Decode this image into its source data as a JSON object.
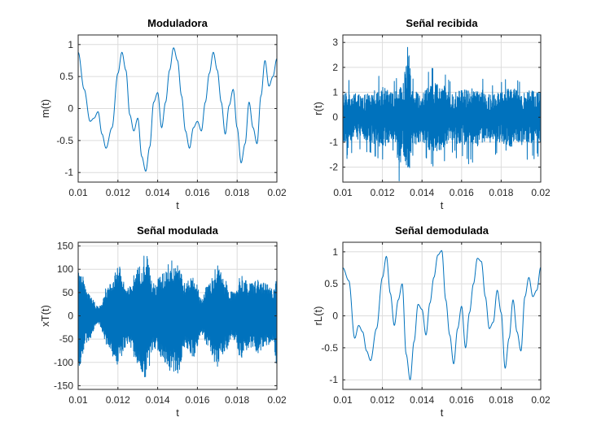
{
  "chart_data": [
    {
      "type": "line",
      "title": "Moduladora",
      "xlabel": "t",
      "ylabel": "m(t)",
      "xlim": [
        0.01,
        0.02
      ],
      "ylim": [
        -1.15,
        1.15
      ],
      "xticks": [
        0.01,
        0.012,
        0.014,
        0.016,
        0.018,
        0.02
      ],
      "xtick_labels": [
        "0.01",
        "0.012",
        "0.014",
        "0.016",
        "0.018",
        "0.02"
      ],
      "yticks": [
        1,
        0.5,
        0,
        -0.5,
        -1
      ],
      "ytick_labels": [
        "1",
        "0.5",
        "0",
        "-0.5",
        "-1"
      ],
      "grid": true,
      "color": "#0072bd",
      "signal": "smooth",
      "series": [
        {
          "x": [
            0.01,
            0.0103,
            0.0106,
            0.0108,
            0.011,
            0.0112,
            0.0114,
            0.0117,
            0.012,
            0.0122,
            0.0124,
            0.0126,
            0.0128,
            0.013,
            0.0132,
            0.0134,
            0.0136,
            0.0138,
            0.014,
            0.0142,
            0.0144,
            0.0146,
            0.0148,
            0.015,
            0.0152,
            0.0154,
            0.0156,
            0.0158,
            0.016,
            0.0162,
            0.0164,
            0.0166,
            0.0168,
            0.017,
            0.0172,
            0.0174,
            0.0176,
            0.0178,
            0.018,
            0.0182,
            0.0184,
            0.0186,
            0.0188,
            0.019,
            0.0192,
            0.0194,
            0.0196,
            0.0198,
            0.02
          ],
          "y": [
            0.88,
            0.3,
            -0.2,
            -0.15,
            -0.05,
            -0.4,
            -0.62,
            -0.3,
            0.55,
            0.88,
            0.6,
            -0.1,
            -0.35,
            -0.15,
            -0.75,
            -0.98,
            -0.6,
            0.1,
            0.25,
            -0.3,
            0.1,
            0.6,
            0.95,
            0.75,
            0.2,
            -0.35,
            -0.62,
            -0.3,
            -0.2,
            -0.35,
            0.1,
            0.55,
            0.88,
            0.6,
            0.1,
            -0.4,
            0.05,
            0.3,
            -0.3,
            -0.85,
            -0.55,
            0.1,
            -0.3,
            -0.55,
            0.2,
            0.75,
            0.35,
            0.5,
            0.78
          ]
        }
      ]
    },
    {
      "type": "line",
      "title": "Señal recibida",
      "xlabel": "t",
      "ylabel": "r(t)",
      "xlim": [
        0.01,
        0.02
      ],
      "ylim": [
        -2.6,
        3.3
      ],
      "xticks": [
        0.01,
        0.012,
        0.014,
        0.016,
        0.018,
        0.02
      ],
      "xtick_labels": [
        "0.01",
        "0.012",
        "0.014",
        "0.016",
        "0.018",
        "0.02"
      ],
      "yticks": [
        3,
        2,
        1,
        0,
        -1,
        -2
      ],
      "ytick_labels": [
        "3",
        "2",
        "1",
        "0",
        "-1",
        "-2"
      ],
      "grid": true,
      "color": "#0072bd",
      "signal": "noise",
      "series": [
        {
          "x": [
            0.01,
            0.011,
            0.012,
            0.0125,
            0.013,
            0.0133,
            0.0135,
            0.014,
            0.0145,
            0.015,
            0.0155,
            0.016,
            0.0165,
            0.017,
            0.0175,
            0.018,
            0.0185,
            0.019,
            0.0195,
            0.02
          ],
          "y": [
            1.1,
            0.9,
            1.2,
            1.0,
            1.3,
            2.9,
            1.1,
            1.0,
            1.4,
            1.3,
            1.0,
            1.1,
            1.2,
            1.1,
            0.9,
            1.0,
            1.2,
            1.0,
            1.1,
            1.0
          ]
        }
      ]
    },
    {
      "type": "line",
      "title": "Señal modulada",
      "xlabel": "t",
      "ylabel": "xT(t)",
      "xlim": [
        0.01,
        0.02
      ],
      "ylim": [
        -158,
        158
      ],
      "xticks": [
        0.01,
        0.012,
        0.014,
        0.016,
        0.018,
        0.02
      ],
      "xtick_labels": [
        "0.01",
        "0.012",
        "0.014",
        "0.016",
        "0.018",
        "0.02"
      ],
      "yticks": [
        150,
        100,
        50,
        0,
        -50,
        -100,
        -150
      ],
      "ytick_labels": [
        "150",
        "100",
        "50",
        "0",
        "-50",
        "-100",
        "-150"
      ],
      "grid": true,
      "color": "#0072bd",
      "signal": "envelope",
      "series": [
        {
          "x": [
            0.01,
            0.0105,
            0.011,
            0.0115,
            0.012,
            0.0125,
            0.013,
            0.0134,
            0.0138,
            0.0142,
            0.0146,
            0.015,
            0.0154,
            0.0158,
            0.0162,
            0.0166,
            0.017,
            0.0174,
            0.0178,
            0.0182,
            0.0186,
            0.019,
            0.0194,
            0.0198,
            0.02
          ],
          "y": [
            110,
            55,
            20,
            65,
            110,
            60,
            105,
            138,
            70,
            90,
            120,
            125,
            70,
            90,
            40,
            75,
            110,
            75,
            50,
            90,
            70,
            80,
            70,
            60,
            105
          ]
        }
      ]
    },
    {
      "type": "line",
      "title": "Señal demodulada",
      "xlabel": "t",
      "ylabel": "rL(t)",
      "xlim": [
        0.01,
        0.02
      ],
      "ylim": [
        -1.15,
        1.15
      ],
      "xticks": [
        0.01,
        0.012,
        0.014,
        0.016,
        0.018,
        0.02
      ],
      "xtick_labels": [
        "0.01",
        "0.012",
        "0.014",
        "0.016",
        "0.018",
        "0.02"
      ],
      "yticks": [
        1,
        0.5,
        0,
        -0.5,
        -1
      ],
      "ytick_labels": [
        "1",
        "0.5",
        "0",
        "-0.5",
        "-1"
      ],
      "grid": true,
      "color": "#0072bd",
      "signal": "smooth",
      "series": [
        {
          "x": [
            0.01,
            0.0103,
            0.0106,
            0.0108,
            0.011,
            0.0112,
            0.0114,
            0.0117,
            0.012,
            0.0122,
            0.0124,
            0.0126,
            0.0128,
            0.013,
            0.0132,
            0.0134,
            0.0136,
            0.0138,
            0.014,
            0.0142,
            0.0144,
            0.0146,
            0.0148,
            0.015,
            0.0152,
            0.0154,
            0.0156,
            0.0158,
            0.016,
            0.0162,
            0.0164,
            0.0166,
            0.0168,
            0.017,
            0.0172,
            0.0174,
            0.0176,
            0.0178,
            0.018,
            0.0182,
            0.0184,
            0.0186,
            0.0188,
            0.019,
            0.0192,
            0.0194,
            0.0196,
            0.0198,
            0.02
          ],
          "y": [
            0.75,
            0.55,
            -0.35,
            -0.15,
            -0.25,
            -0.55,
            -0.7,
            -0.2,
            0.6,
            0.93,
            0.35,
            -0.15,
            0.25,
            0.5,
            -0.6,
            -1.0,
            -0.4,
            0.18,
            0.1,
            -0.3,
            0.2,
            0.6,
            0.95,
            1.02,
            0.25,
            -0.3,
            -0.75,
            -0.2,
            0.15,
            -0.5,
            0.05,
            0.5,
            0.9,
            0.85,
            0.3,
            -0.2,
            -0.1,
            0.4,
            0.05,
            -0.82,
            -0.35,
            0.25,
            -0.25,
            -0.55,
            0.3,
            0.6,
            0.3,
            0.4,
            0.76
          ]
        }
      ]
    }
  ]
}
